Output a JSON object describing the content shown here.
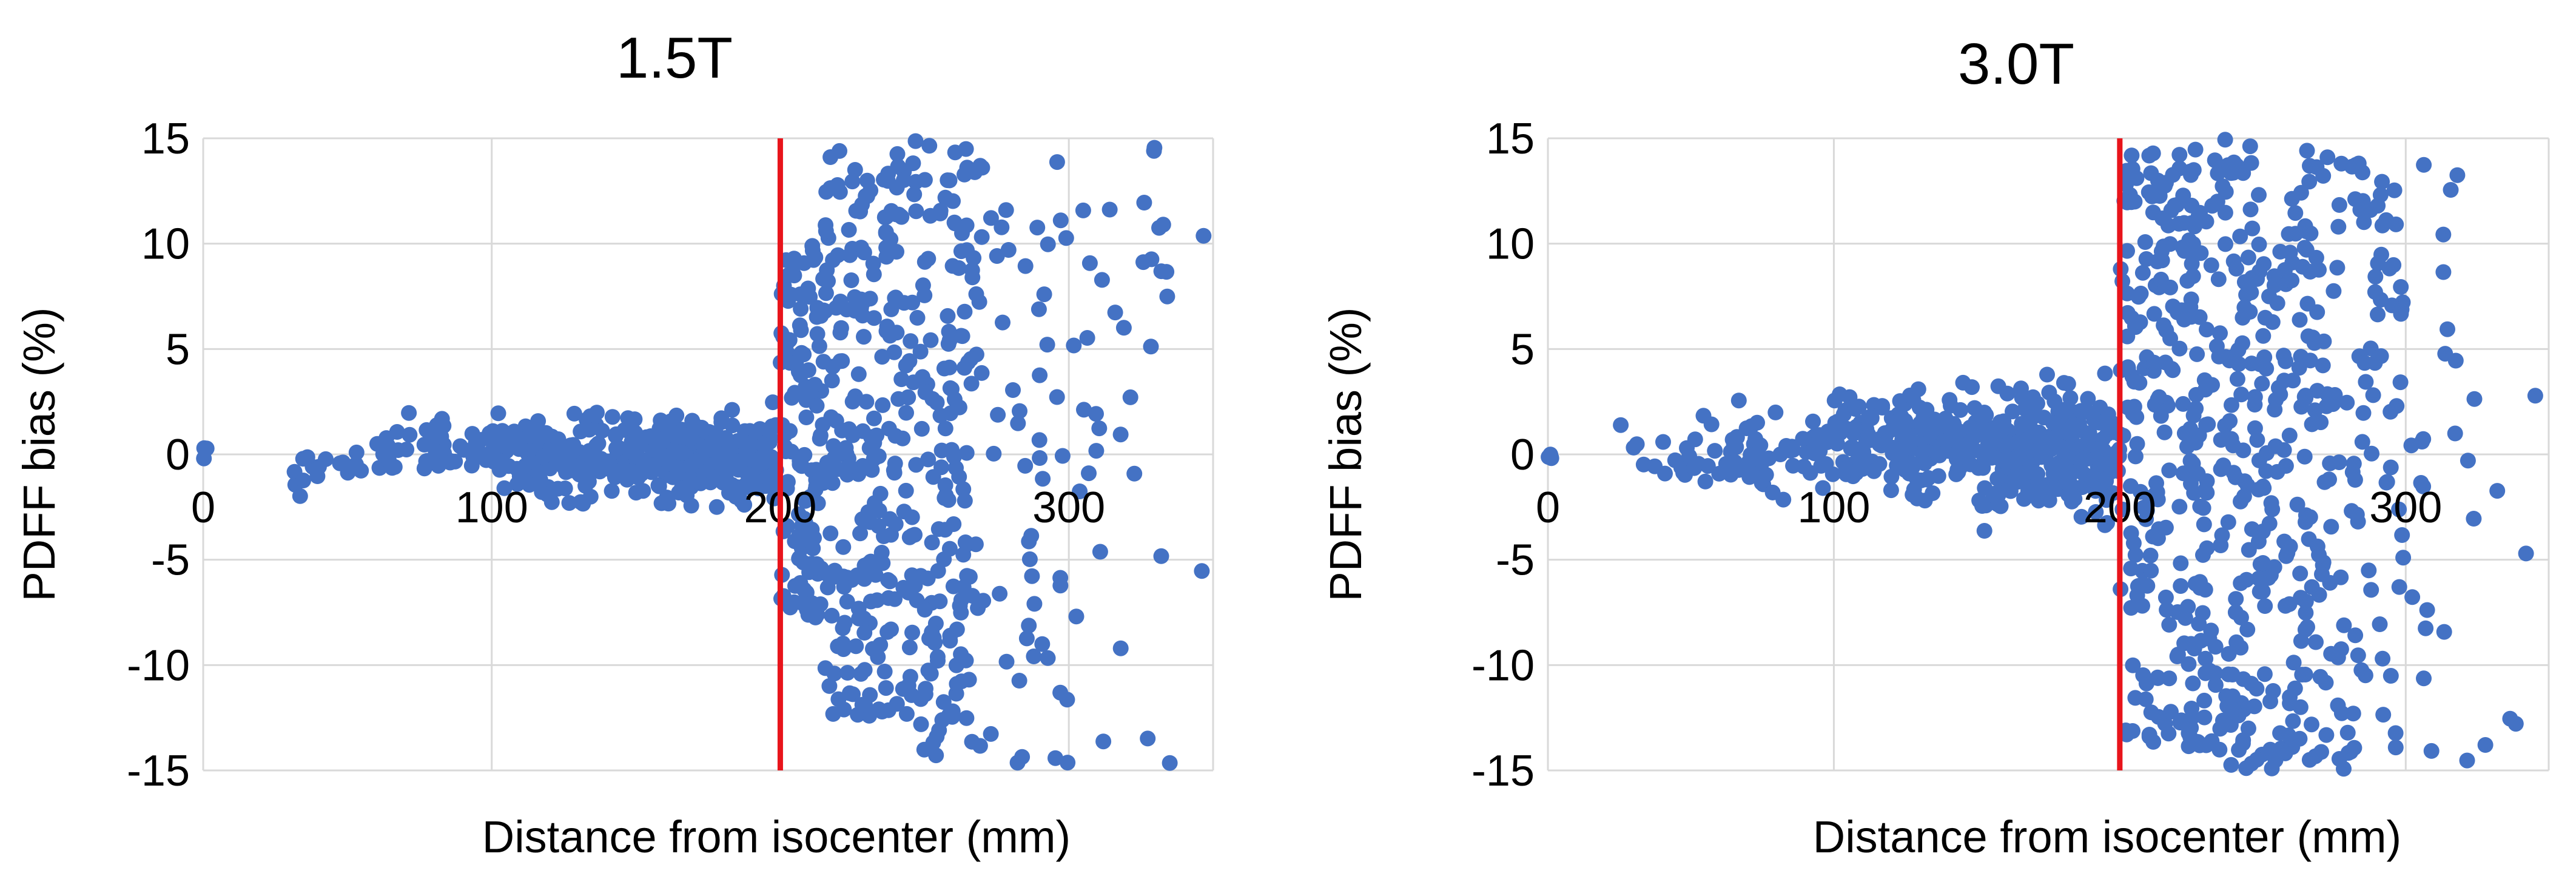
{
  "chart_data": [
    {
      "type": "scatter",
      "title": "1.5T",
      "xlabel": "Distance from isocenter (mm)",
      "ylabel": "PDFF bias (%)",
      "xlim": [
        0,
        350
      ],
      "ylim": [
        -15,
        15
      ],
      "x_ticks": [
        "0",
        "100",
        "200",
        "300"
      ],
      "y_ticks": [
        "15",
        "10",
        "5",
        "0",
        "-5",
        "-10",
        "-15"
      ],
      "grid": true,
      "reference_line_x": 200,
      "reference_line_color": "#e8141b",
      "marker_color": "#4472c4",
      "seed": 7,
      "clusters": [
        {
          "x": [
            0,
            5
          ],
          "n": 3,
          "y": [
            -0.7,
            0.5
          ]
        },
        {
          "x": [
            28,
            60
          ],
          "n": 18,
          "y": [
            -2.8,
            1.2
          ]
        },
        {
          "x": [
            60,
            100
          ],
          "n": 45,
          "y": [
            -2.0,
            2.5
          ]
        },
        {
          "x": [
            100,
            150
          ],
          "n": 160,
          "y": [
            -2.8,
            2.8
          ]
        },
        {
          "x": [
            150,
            200
          ],
          "n": 230,
          "y": [
            -3.0,
            3.0
          ]
        },
        {
          "x": [
            200,
            215
          ],
          "n": 120,
          "y": [
            -8.0,
            10.0
          ]
        },
        {
          "x": [
            215,
            245
          ],
          "n": 220,
          "y": [
            -12.5,
            14.5
          ]
        },
        {
          "x": [
            245,
            270
          ],
          "n": 160,
          "y": [
            -14.8,
            14.9
          ]
        },
        {
          "x": [
            270,
            300
          ],
          "n": 50,
          "y": [
            -14.8,
            14.0
          ]
        },
        {
          "x": [
            300,
            335
          ],
          "n": 35,
          "y": [
            -15.0,
            14.8
          ]
        },
        {
          "x": [
            345,
            350
          ],
          "n": 2,
          "y": [
            -9.0,
            11.0
          ]
        }
      ]
    },
    {
      "type": "scatter",
      "title": "3.0T",
      "xlabel": "Distance from isocenter (mm)",
      "ylabel": "PDFF bias (%)",
      "xlim": [
        0,
        350
      ],
      "ylim": [
        -15,
        15
      ],
      "x_ticks": [
        "0",
        "100",
        "200",
        "300"
      ],
      "y_ticks": [
        "15",
        "10",
        "5",
        "0",
        "-5",
        "-10",
        "-15"
      ],
      "grid": true,
      "reference_line_x": 200,
      "reference_line_color": "#e8141b",
      "marker_color": "#4472c4",
      "seed": 19,
      "clusters": [
        {
          "x": [
            0,
            5
          ],
          "n": 3,
          "y": [
            -0.5,
            0.3
          ]
        },
        {
          "x": [
            25,
            60
          ],
          "n": 22,
          "y": [
            -3.0,
            3.2
          ]
        },
        {
          "x": [
            60,
            100
          ],
          "n": 60,
          "y": [
            -2.8,
            3.0
          ]
        },
        {
          "x": [
            100,
            150
          ],
          "n": 180,
          "y": [
            -3.0,
            4.5
          ]
        },
        {
          "x": [
            150,
            200
          ],
          "n": 240,
          "y": [
            -4.5,
            4.5
          ]
        },
        {
          "x": [
            200,
            230
          ],
          "n": 230,
          "y": [
            -14.0,
            14.5
          ]
        },
        {
          "x": [
            230,
            270
          ],
          "n": 260,
          "y": [
            -15.0,
            15.0
          ]
        },
        {
          "x": [
            270,
            300
          ],
          "n": 110,
          "y": [
            -15.0,
            14.5
          ]
        },
        {
          "x": [
            300,
            330
          ],
          "n": 25,
          "y": [
            -15.0,
            14.0
          ]
        },
        {
          "x": [
            330,
            350
          ],
          "n": 5,
          "y": [
            -14.0,
            11.5
          ]
        }
      ]
    }
  ]
}
